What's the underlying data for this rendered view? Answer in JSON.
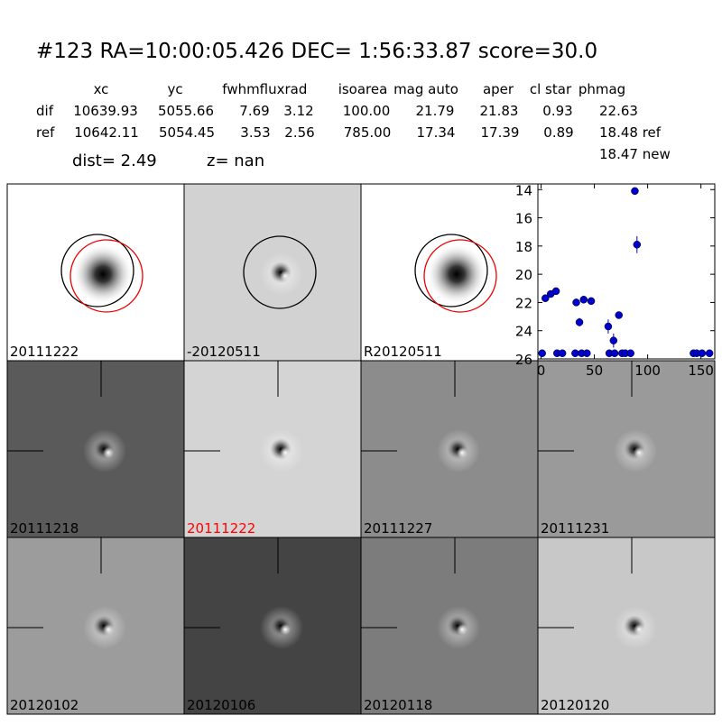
{
  "title": "#123   RA=10:00:05.426 DEC= 1:56:33.87      score=30.0",
  "table": {
    "columns": [
      "xc",
      "yc",
      "fwhm",
      "fluxrad",
      "isoarea",
      "mag auto",
      "aper",
      "cl star",
      "phmag"
    ],
    "rows": [
      [
        "dif",
        "10639.93",
        "5055.66",
        "7.69",
        "3.12",
        "100.00",
        "21.79",
        "21.83",
        "0.93",
        "22.63"
      ],
      [
        "ref",
        "10642.11",
        "5054.45",
        "3.53",
        "2.56",
        "785.00",
        "17.34",
        "17.39",
        "0.89",
        "18.48 ref"
      ]
    ],
    "extra": "18.47 new"
  },
  "dist": "dist=  2.49",
  "z": "z=   nan",
  "panels": [
    {
      "label": "20111222"
    },
    {
      "label": "-20120511"
    },
    {
      "label": "R20120511"
    },
    {
      "label": "20111218"
    },
    {
      "label": "20111222",
      "color": "#ff0000"
    },
    {
      "label": "20111227"
    },
    {
      "label": "20111231"
    },
    {
      "label": "20120102"
    },
    {
      "label": "20120106"
    },
    {
      "label": "20120118"
    },
    {
      "label": "20120120"
    }
  ],
  "chart_data": {
    "type": "scatter",
    "color": "#0000cc",
    "x": [
      1,
      4,
      9,
      14,
      15,
      20,
      32,
      33,
      36,
      38,
      40,
      43,
      47,
      63,
      64,
      68,
      69,
      73,
      76,
      79,
      84,
      88,
      90,
      143,
      146,
      151,
      158
    ],
    "values": [
      25.6,
      21.7,
      21.4,
      21.2,
      25.6,
      25.6,
      25.6,
      22.0,
      23.4,
      25.6,
      21.8,
      25.6,
      21.9,
      23.7,
      25.6,
      24.7,
      25.6,
      22.9,
      25.6,
      25.6,
      25.6,
      14.1,
      17.9,
      25.6,
      25.6,
      25.6,
      25.6
    ],
    "errors": [
      null,
      null,
      null,
      null,
      null,
      null,
      null,
      null,
      0.3,
      null,
      null,
      null,
      null,
      0.5,
      null,
      0.5,
      null,
      0.2,
      null,
      null,
      null,
      null,
      0.6,
      null,
      null,
      null,
      null
    ],
    "xlim": [
      -3,
      163
    ],
    "ylim": [
      26,
      13.6
    ],
    "xticks": [
      0,
      50,
      100,
      150
    ],
    "yticks": [
      14,
      16,
      18,
      20,
      22,
      24,
      26
    ]
  }
}
